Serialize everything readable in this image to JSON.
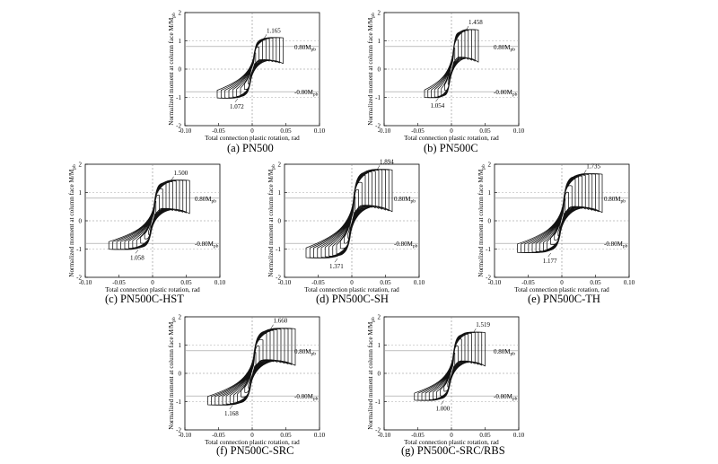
{
  "chart_data": [
    {
      "id": "a",
      "type": "line",
      "title": "",
      "caption": "(a)  PN500",
      "xlabel": "Total connection plastic rotation, rad",
      "ylabel": "Normalized moment at column face  M/M",
      "ylabel_sub": "pb",
      "xlim": [
        -0.1,
        0.1
      ],
      "ylim": [
        -2,
        2
      ],
      "xticks": [
        "-0.10",
        "-0.05",
        "0",
        "0.05",
        "0.10"
      ],
      "yticks": [
        "2",
        "1",
        "0",
        "-1",
        "-2"
      ],
      "ref_pos_label": "0.80M",
      "ref_neg_label": "-0.80M",
      "ref_sub": "pb",
      "ref_level": 0.8,
      "max_label": "1.165",
      "max_point": [
        0.02,
        1.165
      ],
      "min_label": "1.072",
      "min_point": [
        -0.02,
        -1.072
      ],
      "series": [
        {
          "name": "hysteresis",
          "max_rotation": 0.046,
          "min_rotation": -0.052,
          "peak_pos": 1.165,
          "peak_neg": -1.072,
          "cycles": 9
        }
      ]
    },
    {
      "id": "b",
      "type": "line",
      "title": "",
      "caption": "(b)  PN500C",
      "xlabel": "Total connection plastic rotation, rad",
      "ylabel": "Normalized moment at column face  M/M",
      "ylabel_sub": "pb",
      "xlim": [
        -0.1,
        0.1
      ],
      "ylim": [
        -2,
        2
      ],
      "xticks": [
        "-0.10",
        "-0.05",
        "0",
        "0.05",
        "0.10"
      ],
      "yticks": [
        "2",
        "1",
        "0",
        "-1",
        "-2"
      ],
      "ref_pos_label": "0.80M",
      "ref_neg_label": "-0.80M",
      "ref_sub": "pb",
      "ref_level": 0.8,
      "max_label": "1.458",
      "max_point": [
        0.024,
        1.458
      ],
      "min_label": "1.054",
      "min_point": [
        -0.018,
        -1.054
      ],
      "series": [
        {
          "name": "hysteresis",
          "max_rotation": 0.04,
          "min_rotation": -0.04,
          "peak_pos": 1.458,
          "peak_neg": -1.054,
          "cycles": 8
        }
      ]
    },
    {
      "id": "c",
      "type": "line",
      "title": "",
      "caption": "(c)  PN500C-HST",
      "xlabel": "Total connection plastic rotation, rad",
      "ylabel": "Normalized moment at column face  M/M",
      "ylabel_sub": "pb",
      "xlim": [
        -0.1,
        0.1
      ],
      "ylim": [
        -2,
        2
      ],
      "xticks": [
        "-0.10",
        "-0.05",
        "0",
        "0.05",
        "0.10"
      ],
      "yticks": [
        "2",
        "1",
        "0",
        "-1",
        "-2"
      ],
      "ref_pos_label": "0.80M",
      "ref_neg_label": "-0.80M",
      "ref_sub": "pb",
      "ref_level": 0.8,
      "max_label": "1.500",
      "max_point": [
        0.03,
        1.5
      ],
      "min_label": "1.058",
      "min_point": [
        -0.02,
        -1.058
      ],
      "series": [
        {
          "name": "hysteresis",
          "max_rotation": 0.055,
          "min_rotation": -0.065,
          "peak_pos": 1.5,
          "peak_neg": -1.058,
          "cycles": 11
        }
      ]
    },
    {
      "id": "d",
      "type": "line",
      "title": "",
      "caption": "(d)  PN500C-SH",
      "xlabel": "Total connection plastic rotation, rad",
      "ylabel": "Normalized moment at column face  M/M",
      "ylabel_sub": "pb",
      "xlim": [
        -0.1,
        0.1
      ],
      "ylim": [
        -2,
        2
      ],
      "xticks": [
        "-0.10",
        "-0.05",
        "0",
        "0.05",
        "0.10"
      ],
      "yticks": [
        "2",
        "1",
        "0",
        "-1",
        "-2"
      ],
      "ref_pos_label": "0.80M",
      "ref_neg_label": "-0.80M",
      "ref_sub": "pb",
      "ref_level": 0.8,
      "max_label": "1.894",
      "max_point": [
        0.04,
        1.894
      ],
      "min_label": "1.371",
      "min_point": [
        -0.02,
        -1.371
      ],
      "series": [
        {
          "name": "hysteresis",
          "max_rotation": 0.06,
          "min_rotation": -0.068,
          "peak_pos": 1.894,
          "peak_neg": -1.371,
          "cycles": 12
        }
      ]
    },
    {
      "id": "e",
      "type": "line",
      "title": "",
      "caption": "(e)  PN500C-TH",
      "xlabel": "Total connection plastic rotation, rad",
      "ylabel": "Normalized moment at column face  M/M",
      "ylabel_sub": "pb",
      "xlim": [
        -0.1,
        0.1
      ],
      "ylim": [
        -2,
        2
      ],
      "xticks": [
        "-0.10",
        "-0.05",
        "0",
        "0.05",
        "0.10"
      ],
      "yticks": [
        "2",
        "1",
        "0",
        "-1",
        "-2"
      ],
      "ref_pos_label": "0.80M",
      "ref_neg_label": "-0.80M",
      "ref_sub": "pb",
      "ref_level": 0.8,
      "max_label": "1.735",
      "max_point": [
        0.035,
        1.735
      ],
      "min_label": "1.177",
      "min_point": [
        -0.015,
        -1.177
      ],
      "series": [
        {
          "name": "hysteresis",
          "max_rotation": 0.06,
          "min_rotation": -0.066,
          "peak_pos": 1.735,
          "peak_neg": -1.177,
          "cycles": 12
        }
      ]
    },
    {
      "id": "f",
      "type": "line",
      "title": "",
      "caption": "(f)  PN500C-SRC",
      "xlabel": "Total connection plastic rotation, rad",
      "ylabel": "Normalized moment at column face  M/M",
      "ylabel_sub": "pb",
      "xlim": [
        -0.1,
        0.1
      ],
      "ylim": [
        -2,
        2
      ],
      "xticks": [
        "-0.10",
        "-0.05",
        "0",
        "0.05",
        "0.10"
      ],
      "yticks": [
        "2",
        "1",
        "0",
        "-1",
        "-2"
      ],
      "ref_pos_label": "0.80M",
      "ref_neg_label": "-0.80M",
      "ref_sub": "pb",
      "ref_level": 0.8,
      "max_label": "1.660",
      "max_point": [
        0.03,
        1.66
      ],
      "min_label": "1.168",
      "min_point": [
        -0.028,
        -1.168
      ],
      "series": [
        {
          "name": "hysteresis",
          "max_rotation": 0.064,
          "min_rotation": -0.066,
          "peak_pos": 1.66,
          "peak_neg": -1.168,
          "cycles": 12
        }
      ]
    },
    {
      "id": "g",
      "type": "line",
      "title": "",
      "caption": "(g)  PN500C-SRC/RBS",
      "xlabel": "Total connection plastic rotation, rad",
      "ylabel": "Normalized moment at column face  M/M",
      "ylabel_sub": "pb",
      "xlim": [
        -0.1,
        0.1
      ],
      "ylim": [
        -2,
        2
      ],
      "xticks": [
        "-0.10",
        "-0.05",
        "0",
        "0.05",
        "0.10"
      ],
      "yticks": [
        "2",
        "1",
        "0",
        "-1",
        "-2"
      ],
      "ref_pos_label": "0.80M",
      "ref_neg_label": "-0.80M",
      "ref_sub": "pb",
      "ref_level": 0.8,
      "max_label": "1.519",
      "max_point": [
        0.035,
        1.519
      ],
      "min_label": "1.000",
      "min_point": [
        -0.01,
        -1.0
      ],
      "series": [
        {
          "name": "hysteresis",
          "max_rotation": 0.05,
          "min_rotation": -0.055,
          "peak_pos": 1.519,
          "peak_neg": -1.0,
          "cycles": 10
        }
      ]
    }
  ]
}
